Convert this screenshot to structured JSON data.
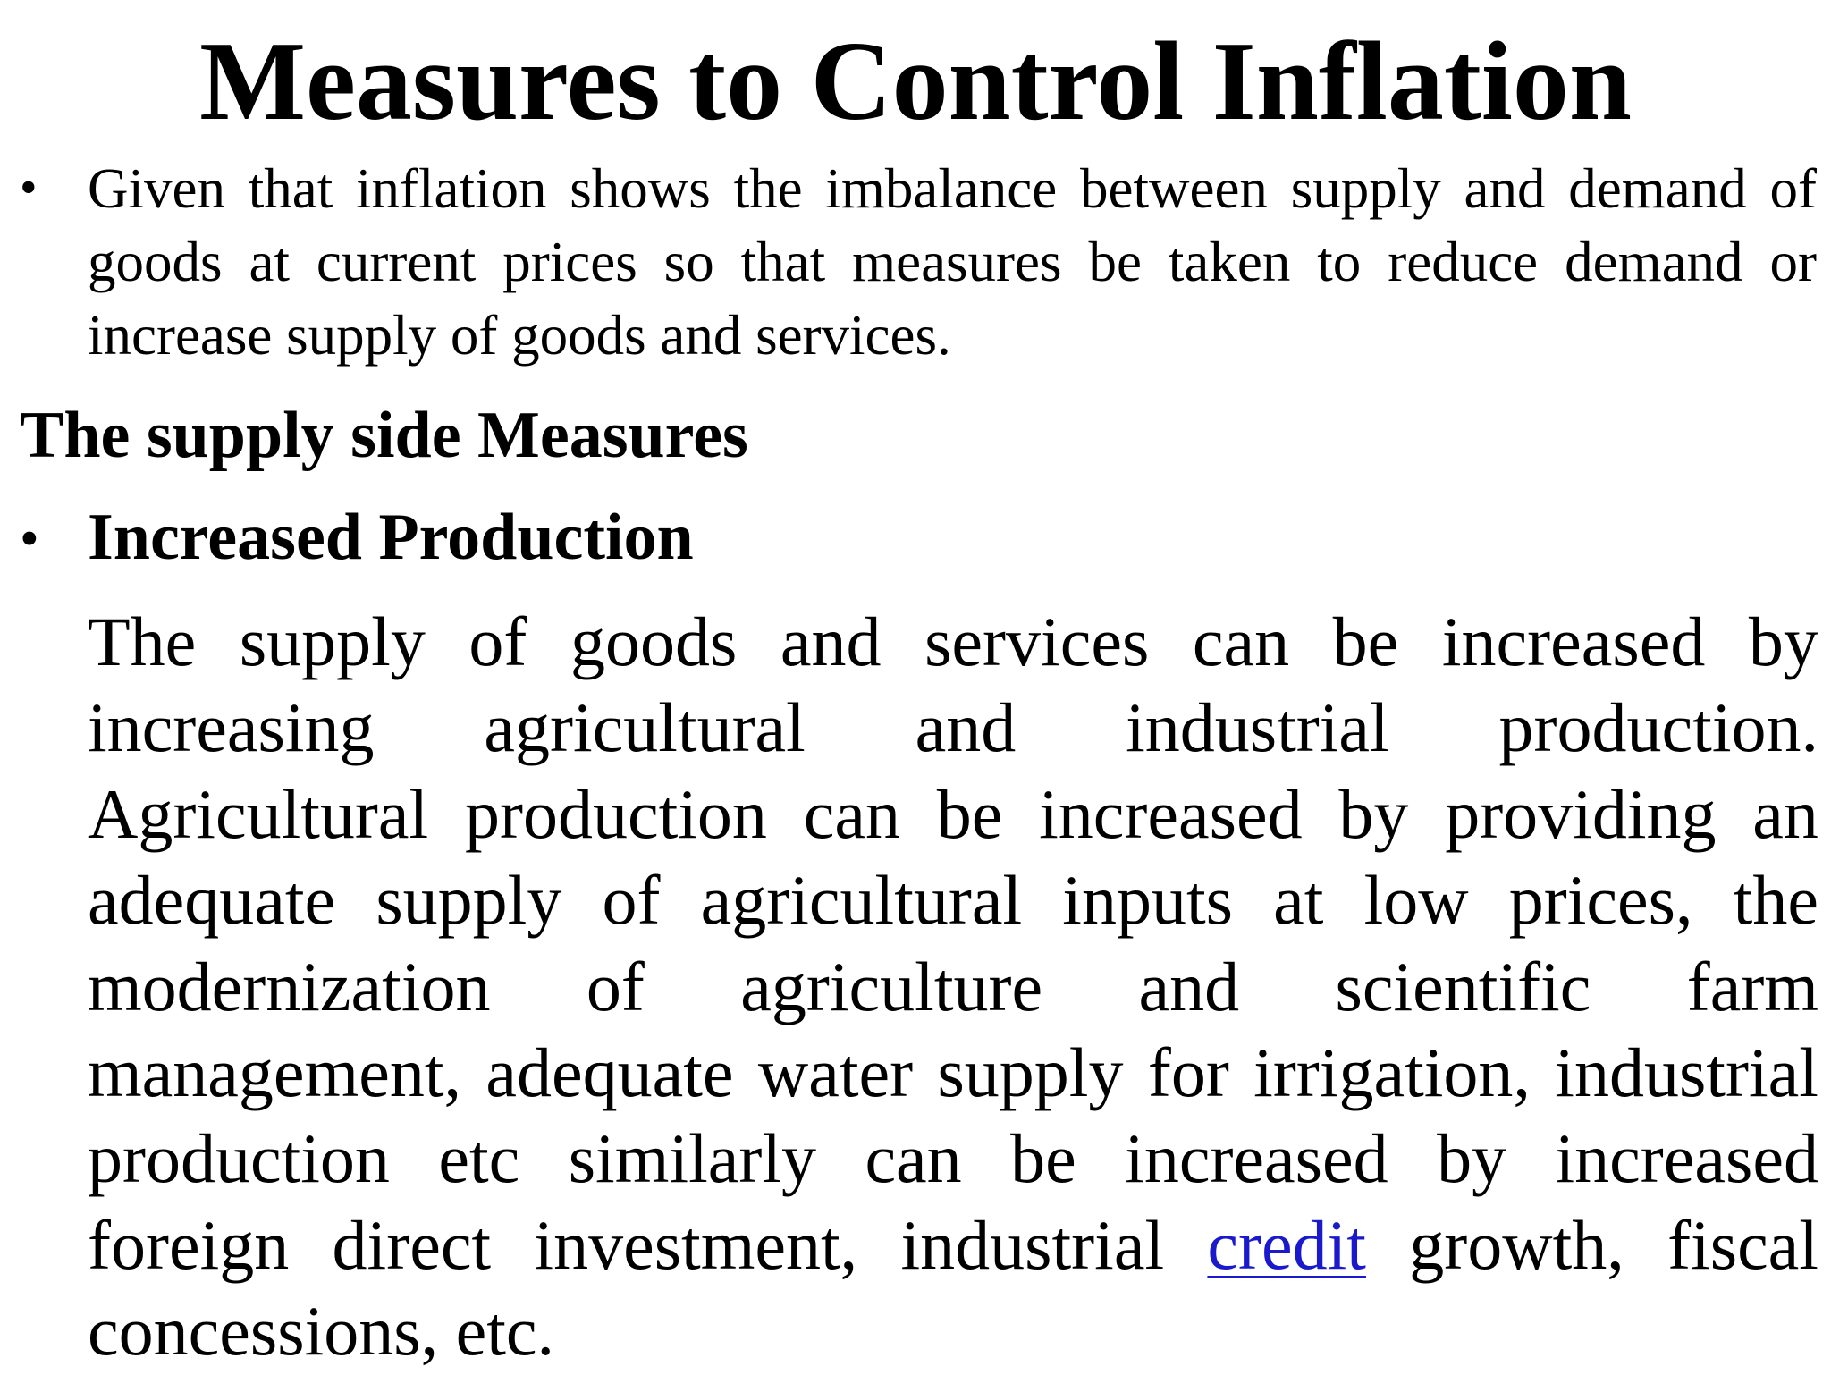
{
  "slide": {
    "title": "Measures to Control Inflation",
    "intro": {
      "bullet": "•",
      "text": "Given that inflation shows the imbalance between supply and demand of goods at current prices so that measures be taken to reduce demand or increase supply of goods and services."
    },
    "section_heading": "The supply side Measures",
    "subsection": {
      "bullet": "•",
      "heading": "Increased Production"
    },
    "paragraph_lines": [
      [
        "The",
        "supply",
        "of",
        "goods",
        "and",
        "services",
        "can",
        "be",
        "increased",
        "by"
      ],
      [
        "increasing",
        "agricultural",
        "and",
        "industrial",
        "production."
      ],
      [
        "Agricultural",
        "production",
        "can",
        "be",
        "increased",
        "by",
        "providing",
        "an"
      ],
      [
        "adequate",
        "supply",
        "of",
        "agricultural",
        "inputs",
        "at",
        "low",
        "prices,",
        "the"
      ],
      [
        "modernization",
        "of",
        "agriculture",
        "and",
        "scientific",
        "farm"
      ],
      [
        "management,",
        "adequate",
        "water",
        "supply",
        "for",
        "irrigation,",
        "industrial"
      ],
      [
        "production",
        "etc",
        "similarly",
        "can",
        "be",
        "increased",
        "by",
        "increased"
      ],
      [
        "foreign",
        "direct",
        "investment,",
        "industrial",
        "credit",
        "growth,",
        "fiscal"
      ],
      [
        "concessions, etc."
      ]
    ],
    "link_word": "credit",
    "colors": {
      "text": "#000000",
      "link": "#1a1acc",
      "background": "#ffffff"
    }
  }
}
